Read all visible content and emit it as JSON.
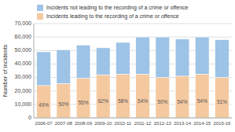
{
  "chart_data": {
    "type": "bar",
    "stacked": true,
    "categories": [
      "2006-07",
      "2007-08",
      "2008-09",
      "2009-10",
      "2010-11",
      "2011-12",
      "2012-13",
      "2013-14",
      "2014-15",
      "2015-16"
    ],
    "series": [
      {
        "name": "Incidents leading to the recording of a crime or offence",
        "color": "#F5C9A0",
        "values": [
          24000,
          25500,
          29500,
          32000,
          32500,
          32500,
          30000,
          31000,
          32500,
          30000
        ],
        "shares": [
          {
            "value": 49,
            "label": "49%"
          },
          {
            "value": 50,
            "label": "50%"
          },
          {
            "value": 55,
            "label": "55%"
          },
          {
            "value": 62,
            "label": "62%"
          },
          {
            "value": 58,
            "label": "58%"
          },
          {
            "value": 54,
            "label": "54%"
          },
          {
            "value": 50,
            "label": "50%"
          },
          {
            "value": 54,
            "label": "54%"
          },
          {
            "value": 54,
            "label": "54%"
          },
          {
            "value": 51,
            "label": "51%"
          }
        ]
      },
      {
        "name": "Incidents not leading to the recording of a crime or offence",
        "color": "#9DC3E6",
        "values": [
          25000,
          25000,
          24500,
          20000,
          23500,
          27500,
          30000,
          27500,
          27500,
          28000
        ]
      }
    ],
    "ylabel": "Number of incidents",
    "ylim": [
      0,
      70000
    ],
    "yticks": [
      0,
      {
        "value": 10000,
        "label": "10,000"
      },
      {
        "value": 20000,
        "label": "20,000"
      },
      {
        "value": 30000,
        "label": "30,000"
      },
      {
        "value": 40000,
        "label": "40,000"
      },
      {
        "value": 50000,
        "label": "50,000"
      },
      {
        "value": 60000,
        "label": "60,000"
      },
      {
        "value": 70000,
        "label": "70,000"
      }
    ],
    "grid": true,
    "legend": "top"
  }
}
